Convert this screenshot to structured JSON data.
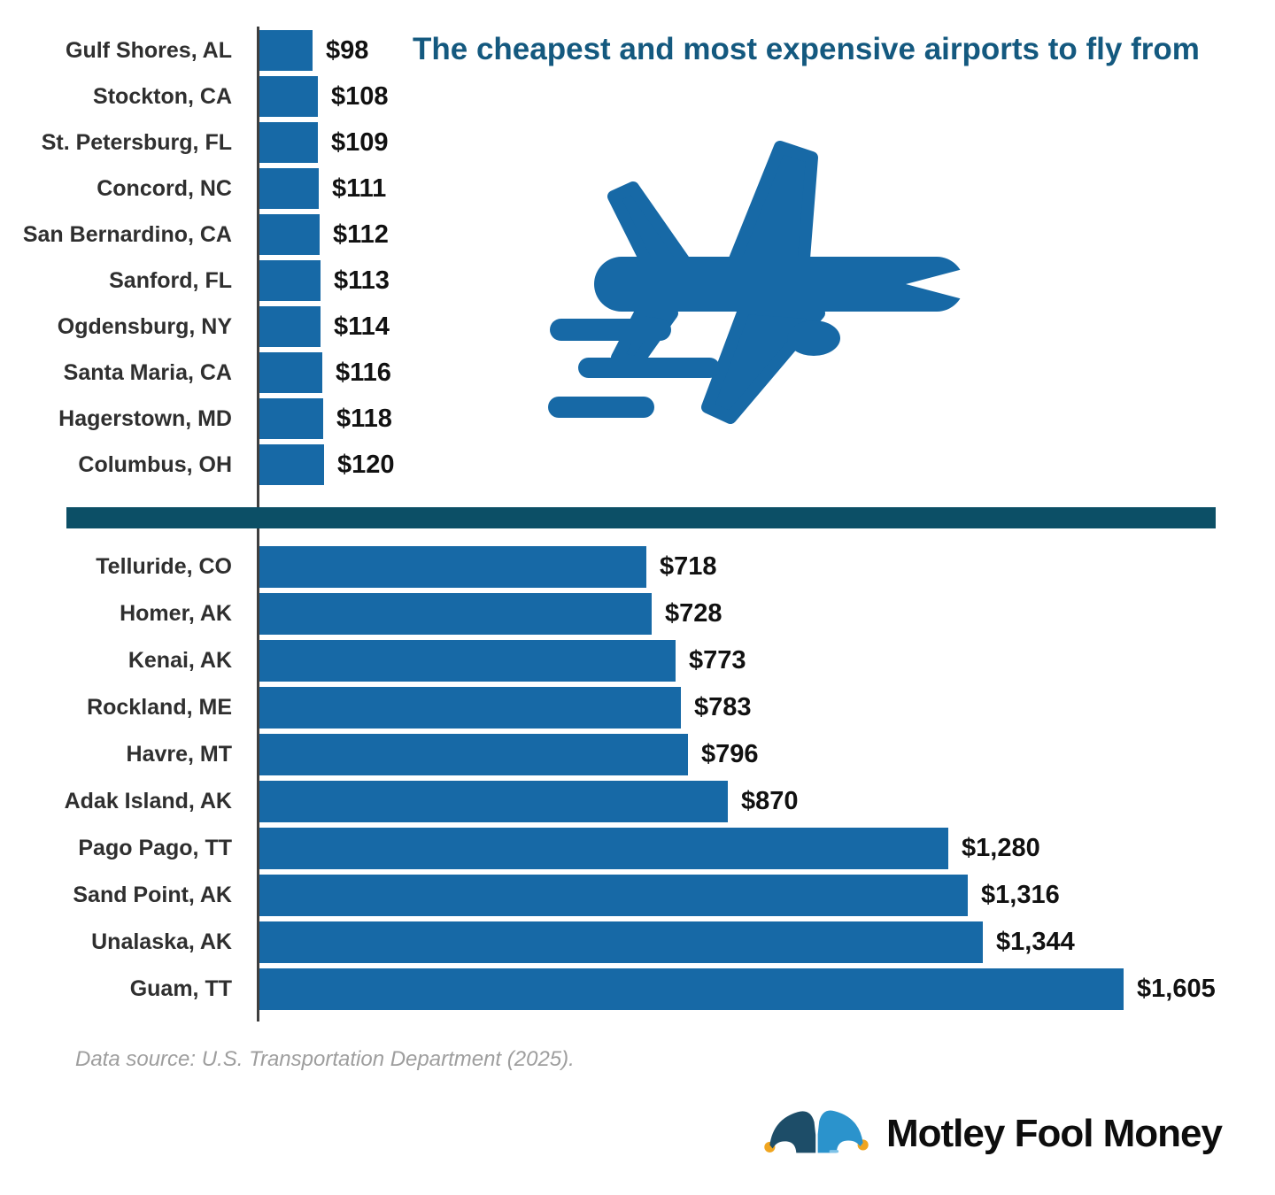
{
  "title": "The cheapest and most expensive airports to fly from",
  "chart_data": {
    "type": "bar",
    "orientation": "horizontal",
    "currency_prefix": "$",
    "xlim": [
      0,
      1650
    ],
    "grid": false,
    "legend": "none",
    "series": [
      {
        "name": "cheapest airports",
        "items": [
          {
            "city": "Gulf Shores, AL",
            "value": 98,
            "price_label": "$98"
          },
          {
            "city": "Stockton, CA",
            "value": 108,
            "price_label": "$108"
          },
          {
            "city": "St. Petersburg, FL",
            "value": 109,
            "price_label": "$109"
          },
          {
            "city": "Concord, NC",
            "value": 111,
            "price_label": "$111"
          },
          {
            "city": "San Bernardino, CA",
            "value": 112,
            "price_label": "$112"
          },
          {
            "city": "Sanford, FL",
            "value": 113,
            "price_label": "$113"
          },
          {
            "city": "Ogdensburg, NY",
            "value": 114,
            "price_label": "$114"
          },
          {
            "city": "Santa Maria, CA",
            "value": 116,
            "price_label": "$116"
          },
          {
            "city": "Hagerstown, MD",
            "value": 118,
            "price_label": "$118"
          },
          {
            "city": "Columbus, OH",
            "value": 120,
            "price_label": "$120"
          }
        ]
      },
      {
        "name": "most expensive airports",
        "items": [
          {
            "city": "Telluride, CO",
            "value": 718,
            "price_label": "$718"
          },
          {
            "city": "Homer, AK",
            "value": 728,
            "price_label": "$728"
          },
          {
            "city": "Kenai, AK",
            "value": 773,
            "price_label": "$773"
          },
          {
            "city": "Rockland, ME",
            "value": 783,
            "price_label": "$783"
          },
          {
            "city": "Havre, MT",
            "value": 796,
            "price_label": "$796"
          },
          {
            "city": "Adak Island, AK",
            "value": 870,
            "price_label": "$870"
          },
          {
            "city": "Pago Pago, TT",
            "value": 1280,
            "price_label": "$1,280"
          },
          {
            "city": "Sand Point, AK",
            "value": 1316,
            "price_label": "$1,316"
          },
          {
            "city": "Unalaska, AK",
            "value": 1344,
            "price_label": "$1,344"
          },
          {
            "city": "Guam, TT",
            "value": 1605,
            "price_label": "$1,605"
          }
        ]
      }
    ]
  },
  "footer": {
    "source": "Data source: U.S. Transportation Department (2025)."
  },
  "logo": {
    "text": "Motley Fool Money"
  },
  "icons": {
    "airplane": "jet-plane-silhouette-with-speed-lines",
    "logo_hat": "jester-hat"
  },
  "colors": {
    "bar_blue": "#1769A6",
    "title_teal": "#14597F",
    "divider_teal": "#0C4F66",
    "axis_gray": "#3F3F3F",
    "category_text": "#2F2F2F",
    "value_text": "#111111",
    "source_gray": "#9E9E9E",
    "logo_hat_dark_blue": "#1D4D68",
    "logo_hat_light_blue": "#2B93CC",
    "logo_gold": "#F0A51F",
    "logo_text_black": "#0D0D0D"
  }
}
